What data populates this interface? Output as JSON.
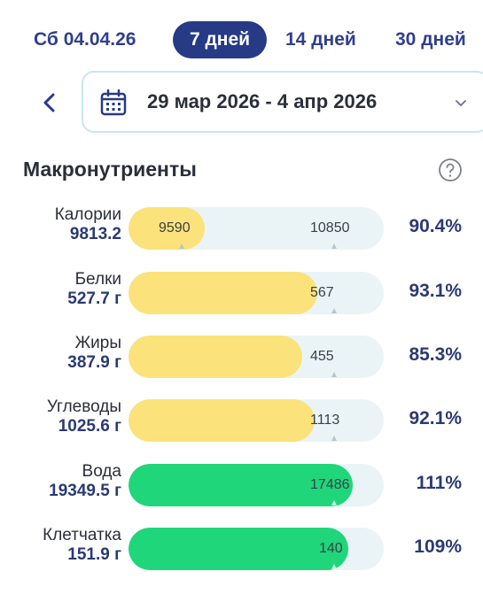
{
  "tabs": [
    {
      "label": "Сб 04.04.26",
      "active": false
    },
    {
      "label": "7 дней",
      "active": true
    },
    {
      "label": "14 дней",
      "active": false
    },
    {
      "label": "30 дней",
      "active": false
    }
  ],
  "date_range": {
    "text": "29 мар 2026 - 4 апр 2026"
  },
  "section": {
    "title": "Макронутриенты"
  },
  "colors": {
    "accent": "#263a86",
    "yellow": "#fbe27a",
    "green": "#1fd67a",
    "track": "#eaf4f7"
  },
  "nutrients": [
    {
      "name": "Калории",
      "value": "9813.2",
      "actual": "9590",
      "target": "10850",
      "percent": "90.4%",
      "color": "yellow",
      "fill": 0.3
    },
    {
      "name": "Белки",
      "value": "527.7 г",
      "actual": "",
      "target": "567",
      "percent": "93.1%",
      "color": "yellow",
      "fill": 0.74
    },
    {
      "name": "Жиры",
      "value": "387.9 г",
      "actual": "",
      "target": "455",
      "percent": "85.3%",
      "color": "yellow",
      "fill": 0.68
    },
    {
      "name": "Углеводы",
      "value": "1025.6 г",
      "actual": "",
      "target": "1113",
      "percent": "92.1%",
      "color": "yellow",
      "fill": 0.73
    },
    {
      "name": "Вода",
      "value": "19349.5 г",
      "actual": "",
      "target": "17486",
      "percent": "111%",
      "color": "green",
      "fill": 0.88
    },
    {
      "name": "Клетчатка",
      "value": "151.9 г",
      "actual": "",
      "target": "140",
      "percent": "109%",
      "color": "green",
      "fill": 0.86
    }
  ]
}
